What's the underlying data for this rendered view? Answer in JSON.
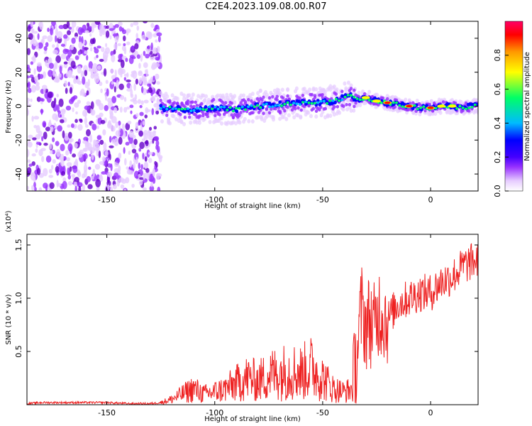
{
  "title": "C2E4.2023.109.08.00.R07",
  "colors": {
    "snr_line": "#ee2222",
    "colormap": [
      "#ffffff",
      "#e6ccff",
      "#9933ff",
      "#6600cc",
      "#0000ff",
      "#00bbff",
      "#00ff66",
      "#ffff00",
      "#ff9900",
      "#ff0000",
      "#ff0066"
    ]
  },
  "chart_data": [
    {
      "type": "heatmap",
      "title": "C2E4.2023.109.08.00.R07",
      "xlabel": "Height of straight line (km)",
      "ylabel": "Frequency (Hz)",
      "xlim": [
        -187,
        22
      ],
      "ylim": [
        -50,
        50
      ],
      "xticks": [
        -150,
        -100,
        -50,
        0
      ],
      "xtick_labels": [
        "-150",
        "-100",
        "-50",
        "0"
      ],
      "yticks": [
        -40,
        -20,
        0,
        20,
        40
      ],
      "ytick_labels": [
        "-40",
        "-20",
        "0",
        "20",
        "40"
      ],
      "colorbar": {
        "label": "Normalized spectral amplitude",
        "range": [
          0,
          1
        ],
        "ticks": [
          0.0,
          0.2,
          0.4,
          0.6,
          0.8
        ],
        "tick_labels": [
          "0.0",
          "0.2",
          "0.4",
          "0.6",
          "0.8"
        ]
      },
      "ridge": {
        "x": [
          -125,
          -110,
          -100,
          -90,
          -80,
          -70,
          -60,
          -50,
          -45,
          -40,
          -37,
          -35,
          -30,
          -25,
          -20,
          -15,
          -10,
          -5,
          0,
          5,
          10,
          15,
          20
        ],
        "y": [
          -1,
          -2,
          -1,
          -2,
          0,
          1,
          2,
          2,
          3,
          5,
          6,
          4,
          5,
          3,
          2,
          1,
          0,
          -1,
          -1,
          0,
          0,
          -1,
          0
        ]
      },
      "noise_region_x": [
        -187,
        -125
      ]
    },
    {
      "type": "line",
      "xlabel": "Height of straight line (km)",
      "ylabel": "SNR (10 * v/v)",
      "yscale_label": "(x10⁴)",
      "xlim": [
        -187,
        22
      ],
      "ylim": [
        0,
        1.6
      ],
      "xticks": [
        -150,
        -100,
        -50,
        0
      ],
      "xtick_labels": [
        "-150",
        "-100",
        "-50",
        "0"
      ],
      "yticks": [
        0.5,
        1.0,
        1.5
      ],
      "ytick_labels": [
        "0.5",
        "1.0",
        "1.5"
      ],
      "series": [
        {
          "x": [
            -187,
            -180,
            -170,
            -160,
            -150,
            -140,
            -130,
            -125,
            -120,
            -115,
            -110,
            -105,
            -100,
            -95,
            -90,
            -85,
            -80,
            -75,
            -70,
            -65,
            -60,
            -55,
            -50,
            -45,
            -40,
            -36,
            -34,
            -32,
            -30,
            -28,
            -26,
            -24,
            -22,
            -20,
            -15,
            -10,
            -5,
            0,
            5,
            10,
            15,
            20
          ],
          "y": [
            0.01,
            0.02,
            0.02,
            0.02,
            0.02,
            0.01,
            0.01,
            0.02,
            0.05,
            0.1,
            0.15,
            0.1,
            0.12,
            0.15,
            0.2,
            0.25,
            0.22,
            0.28,
            0.3,
            0.32,
            0.3,
            0.35,
            0.25,
            0.15,
            0.12,
            0.15,
            0.5,
            0.9,
            0.75,
            0.8,
            0.7,
            0.9,
            0.85,
            0.8,
            0.95,
            1.0,
            1.05,
            1.05,
            1.15,
            1.2,
            1.3,
            1.35
          ]
        }
      ]
    }
  ]
}
